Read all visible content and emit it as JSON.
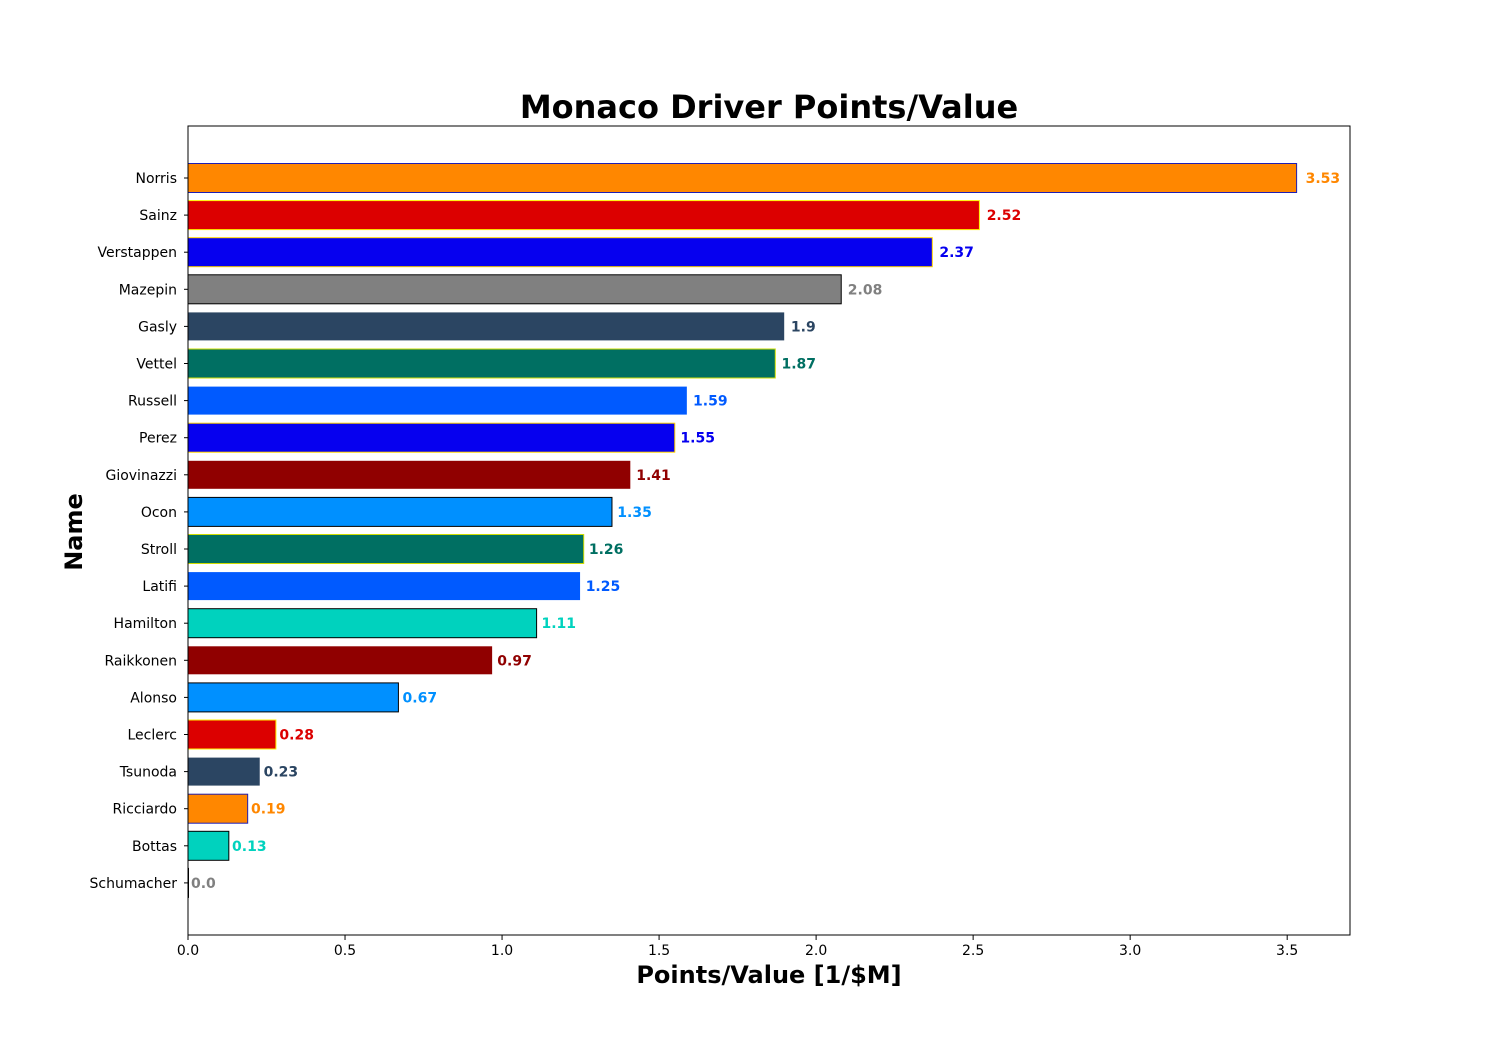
{
  "chart_data": {
    "type": "bar",
    "orientation": "horizontal",
    "title": "Monaco Driver Points/Value",
    "xlabel": "Points/Value [1/$M]",
    "ylabel": "Name",
    "xlim": [
      0,
      3.7
    ],
    "xticks": [
      "0.0",
      "0.5",
      "1.0",
      "1.5",
      "2.0",
      "2.5",
      "3.0",
      "3.5"
    ],
    "grid": false,
    "legend": "none",
    "bars": [
      {
        "name": "Norris",
        "value": 3.53,
        "label": "3.53",
        "color": "#FF8700",
        "edge": "#1E1EB4"
      },
      {
        "name": "Sainz",
        "value": 2.52,
        "label": "2.52",
        "color": "#DC0000",
        "edge": "#FFF200"
      },
      {
        "name": "Verstappen",
        "value": 2.37,
        "label": "2.37",
        "color": "#0600EF",
        "edge": "#FFD200"
      },
      {
        "name": "Mazepin",
        "value": 2.08,
        "label": "2.08",
        "color": "#808080",
        "edge": "#000000"
      },
      {
        "name": "Gasly",
        "value": 1.9,
        "label": "1.9",
        "color": "#2B4562",
        "edge": "#FFFFFF"
      },
      {
        "name": "Vettel",
        "value": 1.87,
        "label": "1.87",
        "color": "#006F62",
        "edge": "#CEDC00"
      },
      {
        "name": "Russell",
        "value": 1.59,
        "label": "1.59",
        "color": "#005AFF",
        "edge": "#FFFFFF"
      },
      {
        "name": "Perez",
        "value": 1.55,
        "label": "1.55",
        "color": "#0600EF",
        "edge": "#FFD200"
      },
      {
        "name": "Giovinazzi",
        "value": 1.41,
        "label": "1.41",
        "color": "#900000",
        "edge": "#FFFFFF"
      },
      {
        "name": "Ocon",
        "value": 1.35,
        "label": "1.35",
        "color": "#0090FF",
        "edge": "#000000"
      },
      {
        "name": "Stroll",
        "value": 1.26,
        "label": "1.26",
        "color": "#006F62",
        "edge": "#CEDC00"
      },
      {
        "name": "Latifi",
        "value": 1.25,
        "label": "1.25",
        "color": "#005AFF",
        "edge": "#FFFFFF"
      },
      {
        "name": "Hamilton",
        "value": 1.11,
        "label": "1.11",
        "color": "#00D2BE",
        "edge": "#000000"
      },
      {
        "name": "Raikkonen",
        "value": 0.97,
        "label": "0.97",
        "color": "#900000",
        "edge": "#FFFFFF"
      },
      {
        "name": "Alonso",
        "value": 0.67,
        "label": "0.67",
        "color": "#0090FF",
        "edge": "#000000"
      },
      {
        "name": "Leclerc",
        "value": 0.28,
        "label": "0.28",
        "color": "#DC0000",
        "edge": "#FFF200"
      },
      {
        "name": "Tsunoda",
        "value": 0.23,
        "label": "0.23",
        "color": "#2B4562",
        "edge": "#FFFFFF"
      },
      {
        "name": "Ricciardo",
        "value": 0.19,
        "label": "0.19",
        "color": "#FF8700",
        "edge": "#1E1EB4"
      },
      {
        "name": "Bottas",
        "value": 0.13,
        "label": "0.13",
        "color": "#00D2BE",
        "edge": "#000000"
      },
      {
        "name": "Schumacher",
        "value": 0.0,
        "label": "0.0",
        "color": "#808080",
        "edge": "#000000"
      }
    ]
  }
}
